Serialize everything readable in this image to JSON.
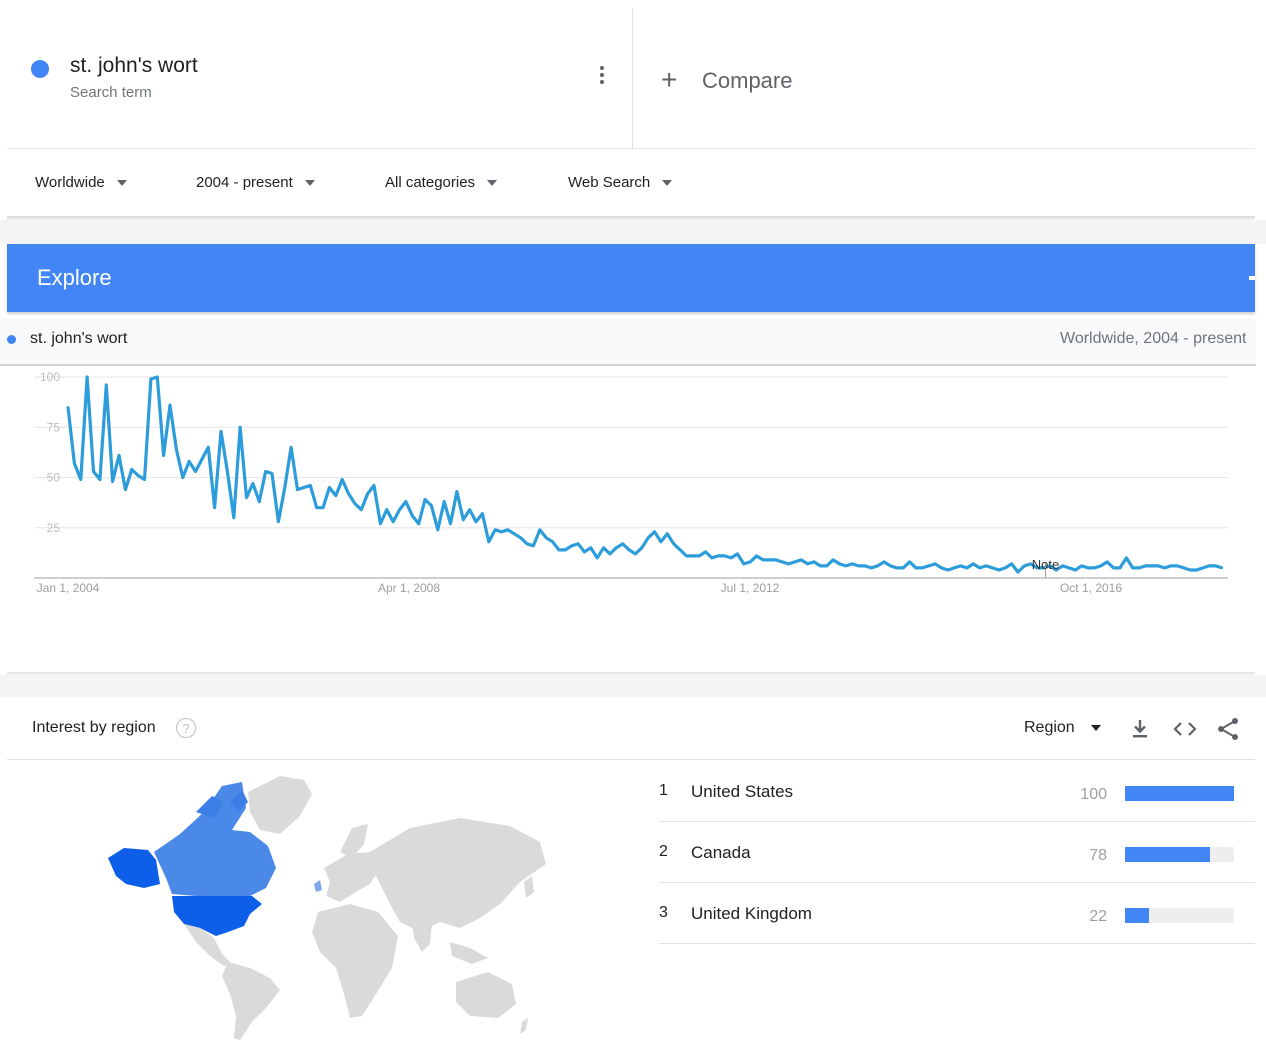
{
  "search_term": {
    "name": "st. john's wort",
    "subtitle": "Search term",
    "color": "#4285f4",
    "more_icon": "more-vert-icon"
  },
  "compare": {
    "label": "Compare",
    "icon": "plus-icon"
  },
  "filters": {
    "location": "Worldwide",
    "time_range": "2004 - present",
    "category": "All categories",
    "search_type": "Web Search"
  },
  "explore": {
    "title": "Explore",
    "color": "#4285f4"
  },
  "chart_legend": {
    "term": "st. john's wort",
    "range": "Worldwide, 2004 - present"
  },
  "chart_data": {
    "type": "line",
    "title": "",
    "xlabel": "",
    "ylabel": "",
    "ylim": [
      0,
      100
    ],
    "y_ticks": [
      25,
      50,
      75,
      100
    ],
    "x_tick_labels": [
      "Jan 1, 2004",
      "Apr 1, 2008",
      "Jul 1, 2012",
      "Oct 1, 2016"
    ],
    "x_start": "2004-01",
    "x_end": "2018-03",
    "grid": true,
    "annotation": "Note",
    "annotation_date": "2016-01",
    "series": [
      {
        "name": "st. john's wort",
        "color": "#2d9cdb",
        "frequency": "monthly",
        "values": [
          85,
          57,
          49,
          100,
          53,
          49,
          96,
          48,
          61,
          44,
          54,
          51,
          49,
          99,
          100,
          61,
          86,
          64,
          50,
          58,
          53,
          59,
          65,
          35,
          73,
          53,
          30,
          75,
          40,
          47,
          38,
          53,
          52,
          28,
          45,
          65,
          44,
          45,
          46,
          35,
          35,
          45,
          41,
          49,
          42,
          37,
          34,
          42,
          46,
          27,
          34,
          28,
          34,
          38,
          31,
          27,
          39,
          36,
          24,
          38,
          27,
          43,
          29,
          34,
          28,
          32,
          18,
          24,
          23,
          24,
          22,
          20,
          17,
          16,
          24,
          20,
          18,
          14,
          14,
          16,
          17,
          13,
          15,
          10,
          15,
          12,
          15,
          17,
          14,
          12,
          15,
          20,
          23,
          18,
          22,
          17,
          14,
          11,
          11,
          11,
          13,
          10,
          11,
          11,
          10,
          12,
          7,
          8,
          11,
          9,
          9,
          9,
          8,
          7,
          8,
          9,
          7,
          8,
          6,
          6,
          9,
          7,
          6,
          7,
          6,
          6,
          5,
          6,
          8,
          6,
          5,
          5,
          8,
          5,
          5,
          6,
          7,
          5,
          4,
          5,
          6,
          5,
          7,
          5,
          6,
          5,
          4,
          5,
          7,
          3,
          6,
          7,
          5,
          5,
          6,
          4,
          6,
          5,
          4,
          6,
          5,
          5,
          6,
          8,
          5,
          5,
          10,
          5,
          5,
          6,
          6,
          6,
          5,
          6,
          6,
          5,
          4,
          4,
          5,
          6,
          6,
          5
        ]
      }
    ]
  },
  "interest_by_region": {
    "title": "Interest by region",
    "help_icon": "help-icon",
    "resolution": "Region",
    "icons": [
      "download-icon",
      "embed-code-icon",
      "share-icon"
    ],
    "rows": [
      {
        "rank": "1",
        "name": "United States",
        "value": "100",
        "fraction": 1.0
      },
      {
        "rank": "2",
        "name": "Canada",
        "value": "78",
        "fraction": 0.78
      },
      {
        "rank": "3",
        "name": "United Kingdom",
        "value": "22",
        "fraction": 0.22
      }
    ],
    "map_colors": {
      "highest": "#0d5ee8",
      "high": "#2f74e6",
      "mid": "#4a89e8",
      "low": "#7ea8ee",
      "none": "#dadada"
    }
  }
}
